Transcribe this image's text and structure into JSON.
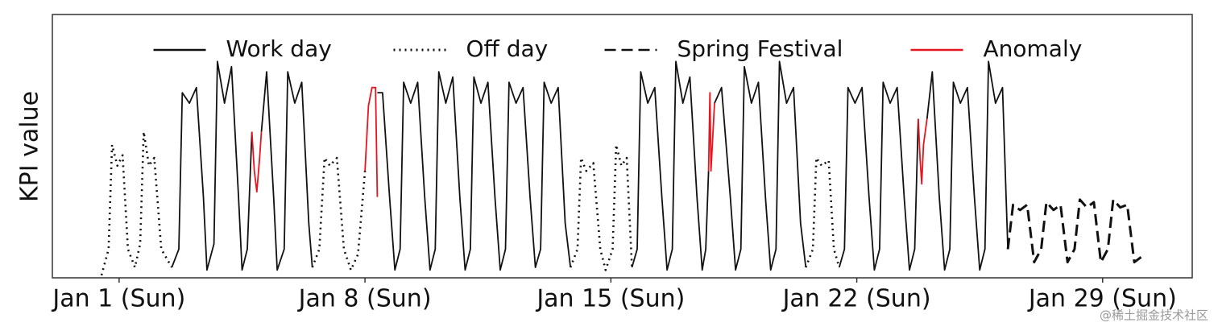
{
  "chart_data": {
    "type": "line",
    "ylabel": "KPI value",
    "watermark": "@稀土掘金技术社区",
    "legend": "upper center",
    "xlim": [
      -1.9,
      30.55
    ],
    "ylim": [
      -0.01,
      1.0
    ],
    "xticks": [
      {
        "value": 0,
        "label": "Jan 1 (Sun)"
      },
      {
        "value": 7,
        "label": "Jan 8 (Sun)"
      },
      {
        "value": 14,
        "label": "Jan 15 (Sun)"
      },
      {
        "value": 21,
        "label": "Jan 22 (Sun)"
      },
      {
        "value": 28,
        "label": "Jan 29 (Sun)"
      }
    ],
    "series": [
      {
        "name": "Work day",
        "color": "#111111",
        "linestyle": "solid",
        "x": [
          1.5,
          1.7,
          1.8,
          2.0,
          2.2,
          2.4,
          2.5,
          2.7,
          2.8,
          3.0,
          3.2,
          3.4,
          3.5,
          3.65,
          3.78,
          3.9,
          4.05,
          4.2,
          4.4,
          4.5,
          4.7,
          4.8,
          5.0,
          5.2,
          5.4,
          5.5,
          6.0,
          7.35,
          7.5,
          7.7,
          7.85,
          8.0,
          8.1,
          8.3,
          8.5,
          8.7,
          8.85,
          9.0,
          9.1,
          9.3,
          9.5,
          9.7,
          9.85,
          10.0,
          10.1,
          10.3,
          10.5,
          10.7,
          10.85,
          11.0,
          11.1,
          11.3,
          11.5,
          11.7,
          11.85,
          12.0,
          12.1,
          12.3,
          12.5,
          12.7,
          12.85,
          13.5,
          14.6,
          14.75,
          14.85,
          15.05,
          15.25,
          15.45,
          15.6,
          15.75,
          15.85,
          16.05,
          16.25,
          16.45,
          16.6,
          16.7,
          16.78,
          16.85,
          16.95,
          17.15,
          17.4,
          17.55,
          17.7,
          17.8,
          18.0,
          18.2,
          18.4,
          18.55,
          18.7,
          18.8,
          19.0,
          19.2,
          19.4,
          19.55,
          20.0,
          20.5,
          20.65,
          20.75,
          20.95,
          21.15,
          21.35,
          21.5,
          21.65,
          21.75,
          21.95,
          22.15,
          22.35,
          22.5,
          22.65,
          22.75,
          22.85,
          23.0,
          23.15,
          23.35,
          23.5,
          23.65,
          23.75,
          23.95,
          24.15,
          24.35,
          24.5,
          24.65,
          24.75,
          24.95,
          25.15,
          25.3
        ],
        "values": [
          0.03,
          0.1,
          0.7,
          0.66,
          0.72,
          0.3,
          0.02,
          0.12,
          0.82,
          0.66,
          0.8,
          0.3,
          0.02,
          0.1,
          0.55,
          null,
          0.55,
          0.78,
          0.3,
          0.02,
          0.1,
          0.78,
          0.66,
          0.74,
          0.2,
          0.03,
          null,
          0.7,
          0.7,
          0.3,
          0.02,
          0.1,
          0.74,
          0.66,
          0.74,
          0.3,
          0.02,
          0.1,
          0.78,
          0.66,
          0.76,
          0.3,
          0.02,
          0.1,
          0.76,
          0.66,
          0.74,
          0.3,
          0.02,
          0.1,
          0.74,
          0.66,
          0.72,
          0.3,
          0.03,
          0.1,
          0.74,
          0.66,
          0.72,
          0.2,
          0.03,
          null,
          0.03,
          0.1,
          0.78,
          0.66,
          0.72,
          0.3,
          0.02,
          0.1,
          0.82,
          0.66,
          0.76,
          0.3,
          0.02,
          0.1,
          0.4,
          null,
          0.66,
          0.72,
          0.3,
          0.02,
          0.1,
          0.8,
          0.66,
          0.74,
          0.3,
          0.02,
          0.1,
          0.82,
          0.66,
          0.72,
          0.2,
          0.03,
          null,
          0.03,
          0.1,
          0.72,
          0.66,
          0.72,
          0.3,
          0.02,
          0.1,
          0.74,
          0.66,
          0.72,
          0.3,
          0.02,
          0.1,
          0.6,
          null,
          0.6,
          0.78,
          0.3,
          0.02,
          0.1,
          0.74,
          0.66,
          0.72,
          0.3,
          0.02,
          0.1,
          0.82,
          0.66,
          0.72,
          0.1
        ]
      },
      {
        "name": "Off day",
        "color": "#111111",
        "linestyle": "dotted",
        "x": [
          -0.5,
          -0.3,
          -0.2,
          -0.05,
          0.1,
          0.25,
          0.45,
          0.6,
          0.7,
          0.85,
          1.0,
          1.2,
          1.5,
          3.0,
          5.5,
          5.7,
          5.85,
          6.0,
          6.2,
          6.4,
          6.6,
          6.8,
          7.0,
          10.0,
          12.85,
          13.05,
          13.15,
          13.3,
          13.5,
          13.7,
          13.85,
          14.05,
          14.15,
          14.3,
          14.45,
          14.6,
          17.0,
          19.55,
          19.75,
          19.85,
          20.0,
          20.2,
          20.35,
          20.5
        ],
        "values": [
          0.0,
          0.1,
          0.5,
          0.42,
          0.46,
          0.1,
          0.03,
          0.12,
          0.55,
          0.42,
          0.45,
          0.1,
          0.03,
          null,
          0.03,
          0.1,
          0.45,
          0.42,
          0.45,
          0.1,
          0.02,
          0.08,
          0.4,
          null,
          0.03,
          0.1,
          0.45,
          0.4,
          0.43,
          0.1,
          0.02,
          0.1,
          0.5,
          0.42,
          0.45,
          0.03,
          null,
          0.03,
          0.1,
          0.45,
          0.42,
          0.44,
          0.1,
          0.03
        ]
      },
      {
        "name": "Spring Festival",
        "color": "#111111",
        "linestyle": "dashed",
        "x": [
          25.3,
          25.45,
          25.65,
          25.85,
          26.05,
          26.25,
          26.4,
          26.6,
          26.8,
          27.0,
          27.2,
          27.35,
          27.55,
          27.75,
          27.95,
          28.15,
          28.3,
          28.5,
          28.7,
          28.9,
          29.1
        ],
        "values": [
          0.1,
          0.27,
          0.25,
          0.27,
          0.05,
          0.1,
          0.28,
          0.25,
          0.27,
          0.05,
          0.1,
          0.29,
          0.26,
          0.28,
          0.05,
          0.1,
          0.29,
          0.26,
          0.27,
          0.05,
          0.07
        ]
      },
      {
        "name": "Anomaly",
        "color": "#e8141e",
        "linestyle": "solid",
        "x": [
          3.78,
          3.85,
          3.92,
          4.0,
          4.05,
          5.0,
          7.0,
          7.1,
          7.2,
          7.3,
          7.35,
          10.0,
          16.78,
          16.82,
          16.85,
          16.95,
          20.0,
          22.75,
          22.8,
          22.85,
          22.9,
          23.0
        ],
        "values": [
          0.55,
          0.4,
          0.32,
          0.45,
          0.55,
          null,
          0.4,
          0.65,
          0.72,
          0.72,
          0.3,
          null,
          0.4,
          0.7,
          0.4,
          0.66,
          null,
          0.6,
          0.45,
          0.35,
          0.5,
          0.6
        ]
      }
    ]
  }
}
